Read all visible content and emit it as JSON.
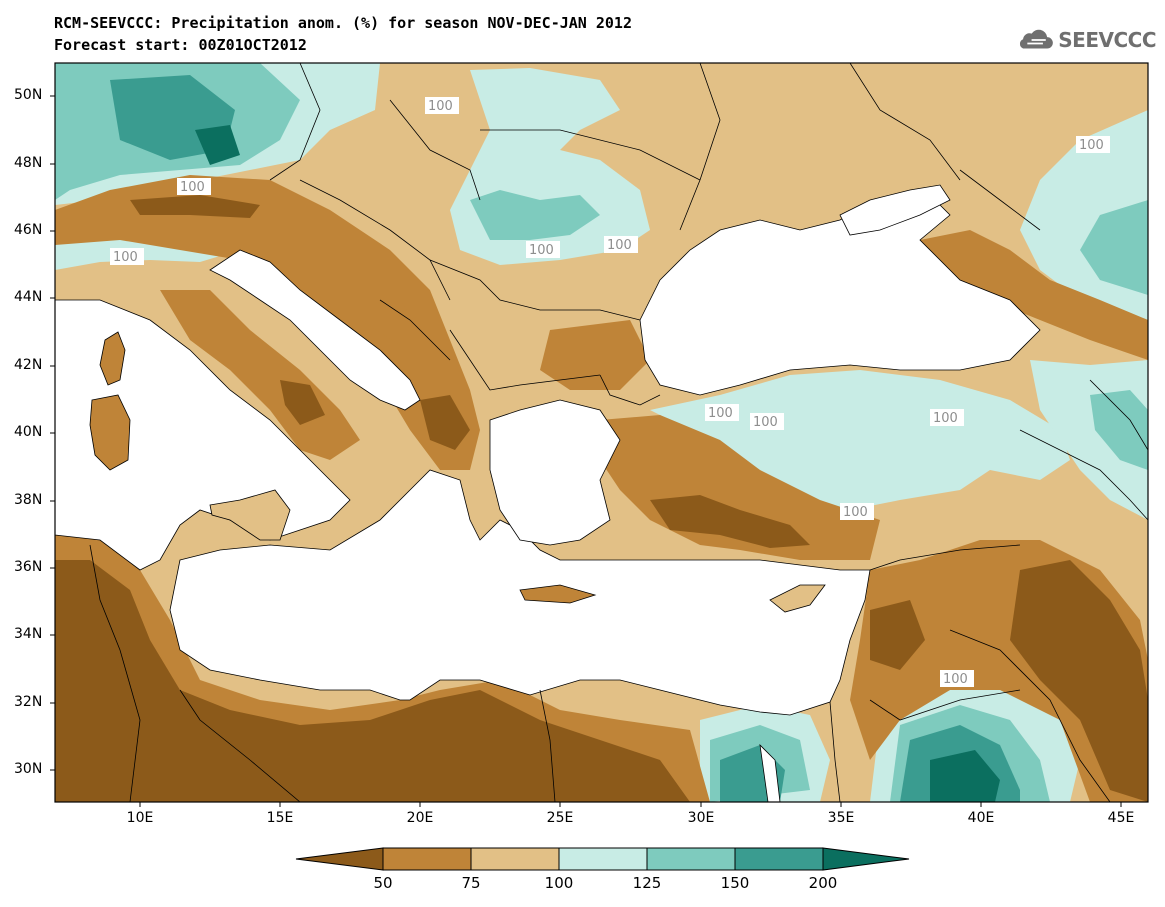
{
  "header": {
    "title_line1": "RCM-SEEVCCC: Precipitation anom. (%) for season NOV-DEC-JAN 2012",
    "title_line2": "Forecast start: 00Z01OCT2012"
  },
  "logo": {
    "text": "SEEVCCC",
    "icon": "cloud-logo-icon"
  },
  "map": {
    "lat_ticks": [
      "50N",
      "48N",
      "46N",
      "44N",
      "42N",
      "40N",
      "38N",
      "36N",
      "34N",
      "32N",
      "30N"
    ],
    "lon_ticks": [
      "10E",
      "15E",
      "20E",
      "25E",
      "30E",
      "35E",
      "40E",
      "45E"
    ],
    "contour_label": "100"
  },
  "colorbar": {
    "labels": [
      "50",
      "75",
      "100",
      "125",
      "150",
      "200"
    ],
    "colors": [
      "#8c5a1a",
      "#bf8438",
      "#e2c086",
      "#c8ece5",
      "#7ecbbe",
      "#3a9c90",
      "#0b6f5f"
    ]
  }
}
